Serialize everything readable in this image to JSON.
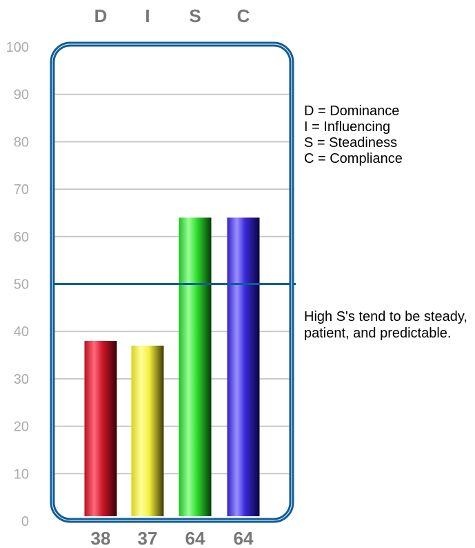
{
  "chart_data": {
    "type": "bar",
    "categories": [
      "D",
      "I",
      "S",
      "C"
    ],
    "values": [
      38,
      37,
      64,
      64
    ],
    "value_labels": [
      "38",
      "37",
      "64",
      "64"
    ],
    "yticks": [
      "0",
      "10",
      "20",
      "30",
      "40",
      "50",
      "60",
      "70",
      "80",
      "90",
      "100"
    ],
    "ylim": [
      0,
      100
    ],
    "reference_line": 50,
    "grid": true,
    "legend_position": "right",
    "colors": {
      "D": "#d01828",
      "I": "#f4f040",
      "S": "#2ee02e",
      "C": "#3a2ad8",
      "frame": "#0e5c9a",
      "grid": "#c8c8c8",
      "label": "#777777"
    }
  },
  "legend": [
    "D = Dominance",
    "I = Influencing",
    "S = Steadiness",
    "C = Compliance"
  ],
  "description": "High S's tend to be steady, patient, and predictable."
}
